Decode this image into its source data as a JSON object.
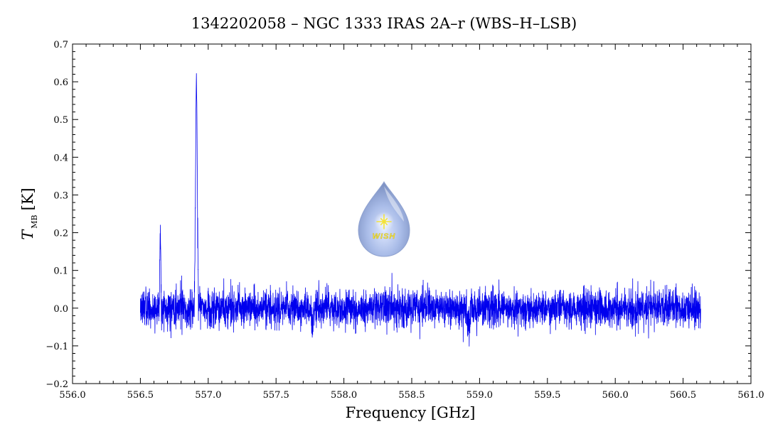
{
  "chart_data": {
    "type": "line",
    "title": "1342202058 – NGC 1333 IRAS 2A–r (WBS–H–LSB)",
    "xlabel": "Frequency [GHz]",
    "ylabel_main": "T",
    "ylabel_sub": "MB",
    "ylabel_unit": "[K]",
    "xlim": [
      556.0,
      561.0
    ],
    "ylim": [
      -0.2,
      0.7
    ],
    "x_ticks": [
      "556.0",
      "556.5",
      "557.0",
      "557.5",
      "558.0",
      "558.5",
      "559.0",
      "559.5",
      "560.0",
      "560.5",
      "561.0"
    ],
    "y_ticks": [
      "−0.2",
      "−0.1",
      "0.0",
      "0.1",
      "0.2",
      "0.3",
      "0.4",
      "0.5",
      "0.6",
      "0.7"
    ],
    "grid": false,
    "series_color": "#0000ee",
    "spectrum": {
      "x_start": 556.5,
      "x_end": 560.63,
      "baseline": 0.0,
      "noise_rms": 0.025,
      "peaks": [
        {
          "x": 556.647,
          "y": 0.21
        },
        {
          "x": 556.913,
          "y": 0.61
        }
      ],
      "dips": [
        {
          "x": 557.77,
          "y": -0.09
        },
        {
          "x": 558.92,
          "y": -0.11
        }
      ]
    },
    "logo": {
      "text": "WISH",
      "fill": "#aebfe8",
      "star_color": "#f3e23a"
    }
  }
}
